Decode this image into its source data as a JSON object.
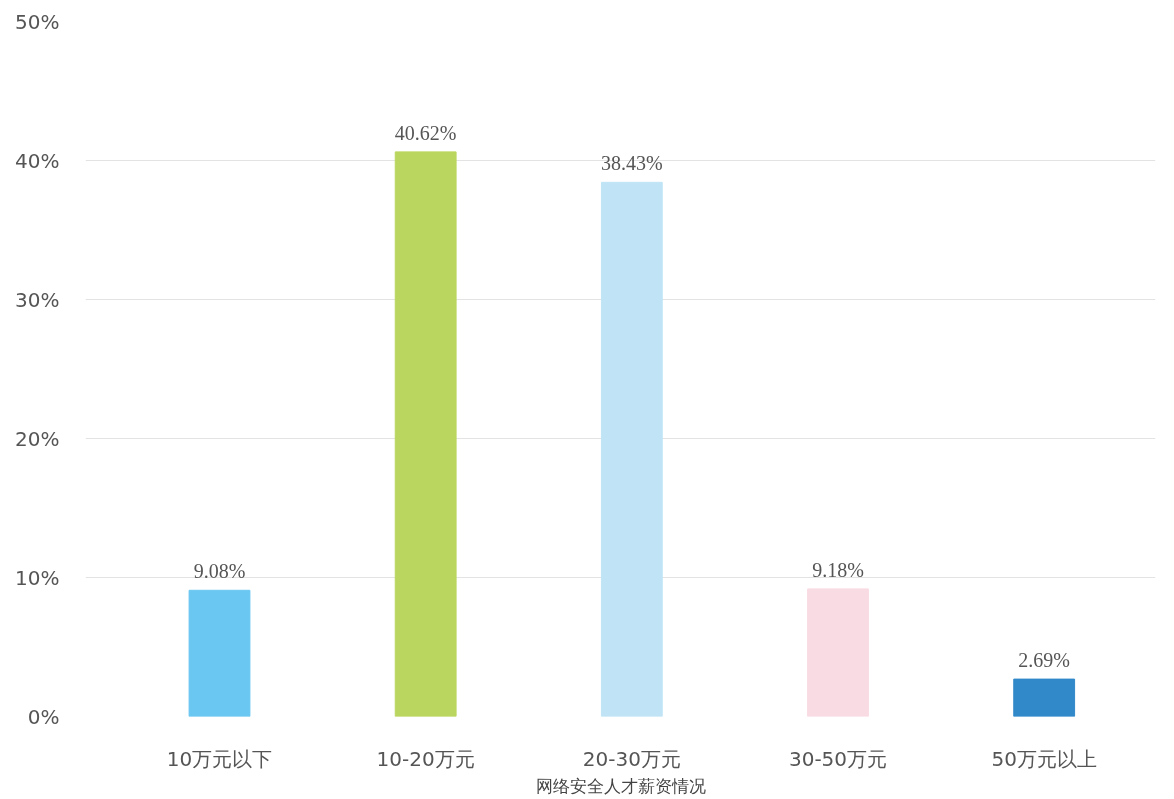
{
  "chart_data": {
    "type": "bar",
    "title": "网络安全人才薪资情况",
    "categories": [
      "10万元以下",
      "10-20万元",
      "20-30万元",
      "30-50万元",
      "50万元以上"
    ],
    "values": [
      9.08,
      40.62,
      38.43,
      9.18,
      2.69
    ],
    "colors": [
      "#6ac7f2",
      "#bad65e",
      "#c0e4f6",
      "#f8dbe3",
      "#3289c9"
    ],
    "value_labels": [
      "9.08%",
      "40.62%",
      "38.43%",
      "9.18%",
      "2.69%"
    ],
    "ylim": [
      0,
      50
    ],
    "yticks": [
      {
        "value": 0,
        "label": "0%"
      },
      {
        "value": 10,
        "label": "10%"
      },
      {
        "value": 20,
        "label": "20%"
      },
      {
        "value": 30,
        "label": "30%"
      },
      {
        "value": 40,
        "label": "40%"
      },
      {
        "value": 50,
        "label": "50%"
      }
    ],
    "grid": "y"
  }
}
